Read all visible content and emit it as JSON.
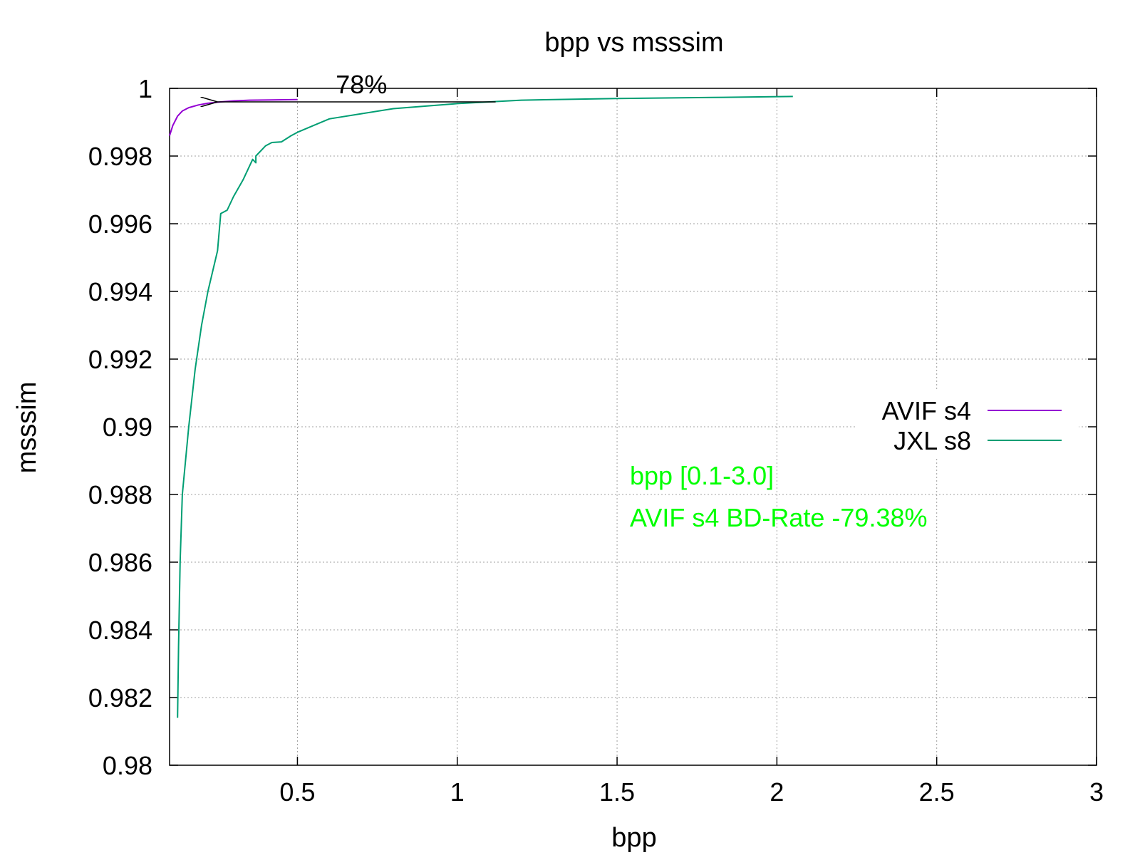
{
  "chart_data": {
    "type": "line",
    "title": "bpp vs msssim",
    "xlabel": "bpp",
    "ylabel": "msssim",
    "xlim": [
      0.1,
      3
    ],
    "ylim": [
      0.98,
      1
    ],
    "xticks": [
      0.5,
      1,
      1.5,
      2,
      2.5,
      3
    ],
    "xtick_labels": [
      "0.5",
      "1",
      "1.5",
      "2",
      "2.5",
      "3"
    ],
    "yticks": [
      0.98,
      0.982,
      0.984,
      0.986,
      0.988,
      0.99,
      0.992,
      0.994,
      0.996,
      0.998,
      1
    ],
    "ytick_labels": [
      "0.98",
      "0.982",
      "0.984",
      "0.986",
      "0.988",
      "0.99",
      "0.992",
      "0.994",
      "0.996",
      "0.998",
      "1"
    ],
    "grid": true,
    "legend_position": "right",
    "series": [
      {
        "name": "AVIF s4",
        "color": "#9400d3",
        "points": [
          [
            0.1,
            0.9986
          ],
          [
            0.11,
            0.9989
          ],
          [
            0.125,
            0.99918
          ],
          [
            0.14,
            0.99933
          ],
          [
            0.16,
            0.99943
          ],
          [
            0.19,
            0.99951
          ],
          [
            0.22,
            0.99956
          ],
          [
            0.26,
            0.9996
          ],
          [
            0.3,
            0.99963
          ],
          [
            0.35,
            0.99965
          ],
          [
            0.42,
            0.99966
          ],
          [
            0.5,
            0.99967
          ]
        ]
      },
      {
        "name": "JXL s8",
        "color": "#009e73",
        "points": [
          [
            0.125,
            0.9814
          ],
          [
            0.128,
            0.9835
          ],
          [
            0.133,
            0.986
          ],
          [
            0.14,
            0.988
          ],
          [
            0.15,
            0.989
          ],
          [
            0.16,
            0.99
          ],
          [
            0.18,
            0.9917
          ],
          [
            0.2,
            0.993
          ],
          [
            0.22,
            0.994
          ],
          [
            0.25,
            0.9952
          ],
          [
            0.26,
            0.9963
          ],
          [
            0.28,
            0.9964
          ],
          [
            0.3,
            0.9968
          ],
          [
            0.33,
            0.9973
          ],
          [
            0.36,
            0.9979
          ],
          [
            0.37,
            0.9978
          ],
          [
            0.37,
            0.998
          ],
          [
            0.4,
            0.9983
          ],
          [
            0.42,
            0.9984
          ],
          [
            0.45,
            0.99842
          ],
          [
            0.48,
            0.9986
          ],
          [
            0.5,
            0.9987
          ],
          [
            0.55,
            0.9989
          ],
          [
            0.6,
            0.9991
          ],
          [
            0.7,
            0.99925
          ],
          [
            0.8,
            0.9994
          ],
          [
            1.0,
            0.99955
          ],
          [
            1.2,
            0.99965
          ],
          [
            1.5,
            0.9997
          ],
          [
            1.8,
            0.99973
          ],
          [
            2.05,
            0.99976
          ]
        ]
      }
    ],
    "annotations": [
      {
        "text": "78%",
        "x": 0.62,
        "y": 0.99985,
        "color": "#000000"
      },
      {
        "text": "bpp [0.1-3.0]",
        "x": 1.54,
        "y": 0.9883,
        "color": "#00ff00"
      },
      {
        "text": "AVIF s4 BD-Rate -79.38%",
        "x": 1.54,
        "y": 0.98705,
        "color": "#00ff00"
      }
    ],
    "arrow": {
      "from": [
        1.12,
        0.9996
      ],
      "to": [
        0.25,
        0.9996
      ],
      "color": "#000000"
    }
  }
}
